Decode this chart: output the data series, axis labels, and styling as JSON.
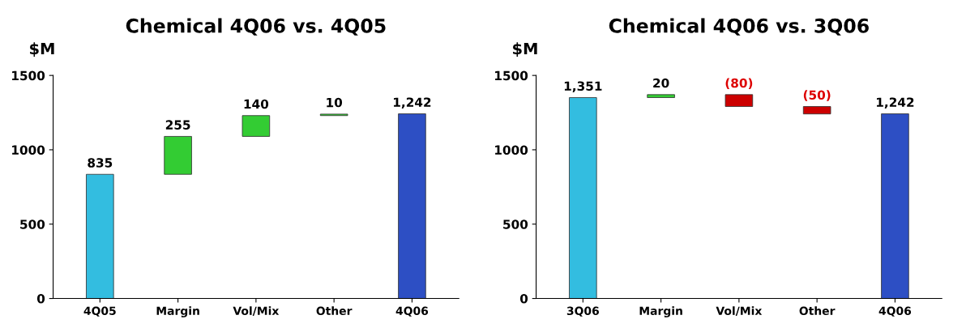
{
  "chart_data": [
    {
      "type": "bar",
      "title": "Chemical 4Q06 vs. 4Q05",
      "ylabel": "$M",
      "categories": [
        "4Q05",
        "Margin",
        "Vol/Mix",
        "Other",
        "4Q06"
      ],
      "values": [
        835,
        255,
        140,
        10,
        1242
      ],
      "base": [
        0,
        835,
        1090,
        1230,
        0
      ],
      "colors": [
        "#33bde0",
        "#33cc33",
        "#33cc33",
        "#33cc33",
        "#2d4fc4"
      ],
      "value_labels": [
        "835",
        "255",
        "140",
        "10",
        "1,242"
      ],
      "ylim": [
        0,
        1500
      ],
      "yticks": [
        0,
        500,
        1000,
        1500
      ],
      "grid": false,
      "legend": false
    },
    {
      "type": "bar",
      "title": "Chemical 4Q06 vs. 3Q06",
      "ylabel": "$M",
      "categories": [
        "3Q06",
        "Margin",
        "Vol/Mix",
        "Other",
        "4Q06"
      ],
      "values": [
        1351,
        20,
        -80,
        -50,
        1242
      ],
      "base": [
        0,
        1351,
        1371,
        1291,
        0
      ],
      "colors": [
        "#33bde0",
        "#33cc33",
        "#cc0000",
        "#cc0000",
        "#2d4fc4"
      ],
      "value_labels": [
        "1,351",
        "20",
        "(80)",
        "(50)",
        "1,242"
      ],
      "ylim": [
        0,
        1500
      ],
      "yticks": [
        0,
        500,
        1000,
        1500
      ],
      "grid": false,
      "legend": false
    }
  ]
}
